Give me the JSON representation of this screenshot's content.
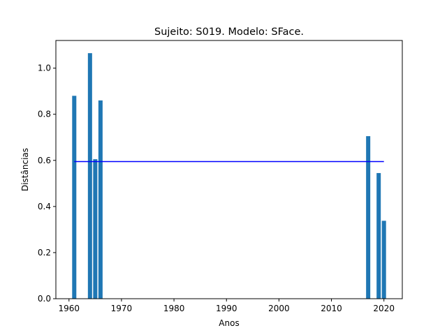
{
  "chart_data": {
    "type": "bar",
    "title": "Sujeito: S019. Modelo: SFace.",
    "xlabel": "Anos",
    "ylabel": "Distâncias",
    "xlim": [
      1957.5,
      2023.5
    ],
    "ylim": [
      0.0,
      1.12
    ],
    "xticks": [
      1960,
      1970,
      1980,
      1990,
      2000,
      2010,
      2020
    ],
    "yticks": [
      0.0,
      0.2,
      0.4,
      0.6,
      0.8,
      1.0
    ],
    "x": [
      1961,
      1964,
      1965,
      1966,
      2017,
      2019,
      2020
    ],
    "values": [
      0.88,
      1.065,
      0.605,
      0.86,
      0.705,
      0.545,
      0.338
    ],
    "bar_width": 0.8,
    "bar_color": "#1f77b4",
    "threshold_line": {
      "y": 0.595,
      "x_start": 1961,
      "x_end": 2020,
      "color": "#0000ff"
    },
    "grid": false,
    "legend": "none"
  }
}
